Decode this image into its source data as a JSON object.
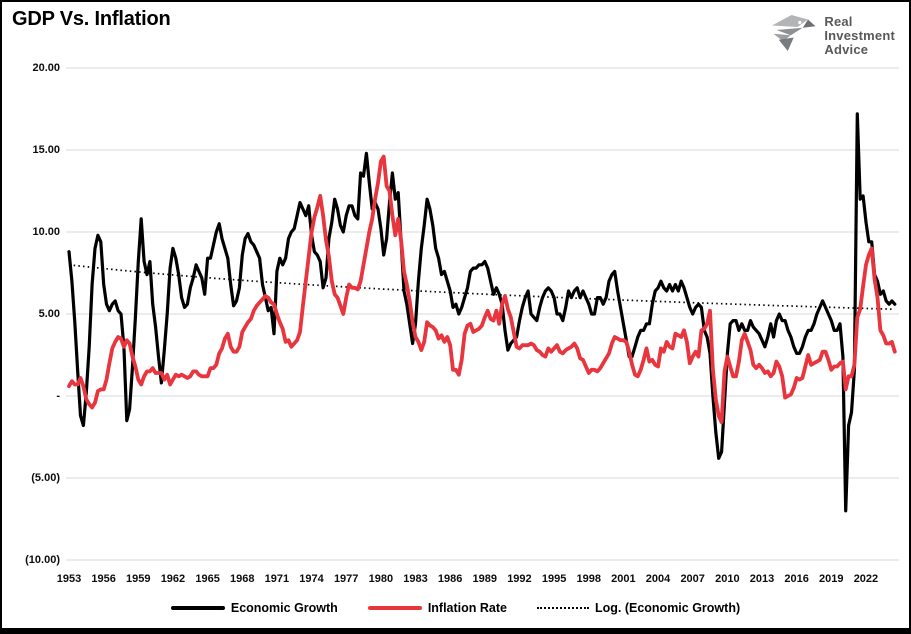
{
  "title": "GDP Vs. Inflation",
  "logo": {
    "line1": "Real",
    "line2": "Investment",
    "line3": "Advice"
  },
  "colors": {
    "economic_growth": "#000000",
    "inflation_rate": "#e8353e",
    "trend_line": "#000000",
    "gridline": "#d9d9d9",
    "axis_text": "#0d0d0d",
    "logo_gray": "#8e9093",
    "logo_text": "#58595b",
    "frame": "#000000"
  },
  "chart_data": {
    "type": "line",
    "title": "GDP Vs. Inflation",
    "frequency": "quarterly",
    "x_start_year": 1953,
    "x_end_year": 2024.5,
    "ylim": [
      -10,
      20
    ],
    "grid": "horizontal-only",
    "legend_position": "bottom-center",
    "y_ticks": [
      {
        "value": 20,
        "label": "20.00"
      },
      {
        "value": 15,
        "label": "15.00"
      },
      {
        "value": 10,
        "label": "10.00"
      },
      {
        "value": 5,
        "label": "5.00"
      },
      {
        "value": 0,
        "label": "-"
      },
      {
        "value": -5,
        "label": "(5.00)"
      },
      {
        "value": -10,
        "label": "(10.00)"
      }
    ],
    "x_ticks": [
      "1953",
      "1956",
      "1959",
      "1962",
      "1965",
      "1968",
      "1971",
      "1974",
      "1977",
      "1980",
      "1983",
      "1986",
      "1989",
      "1992",
      "1995",
      "1998",
      "2001",
      "2004",
      "2007",
      "2010",
      "2013",
      "2016",
      "2019",
      "2022"
    ],
    "legend": [
      {
        "label": "Economic Growth",
        "style": "solid",
        "color": "#000000"
      },
      {
        "label": "Inflation Rate",
        "style": "solid",
        "color": "#e8353e"
      },
      {
        "label": "Log. (Economic Growth)",
        "style": "dotted",
        "color": "#000000"
      }
    ],
    "series": [
      {
        "name": "Economic Growth",
        "color": "#000000",
        "values": [
          8.8,
          7.0,
          4.5,
          1.5,
          -1.2,
          -1.8,
          0.2,
          3.0,
          6.8,
          9.0,
          9.8,
          9.4,
          6.8,
          5.6,
          5.2,
          5.6,
          5.8,
          5.2,
          5.0,
          3.0,
          -1.5,
          -0.8,
          1.8,
          4.8,
          8.2,
          10.8,
          8.2,
          7.4,
          8.2,
          5.6,
          4.2,
          2.4,
          0.8,
          2.8,
          5.0,
          7.8,
          9.0,
          8.4,
          7.4,
          6.0,
          5.4,
          5.6,
          6.6,
          7.2,
          8.0,
          7.6,
          7.2,
          6.2,
          8.4,
          8.4,
          9.2,
          10.0,
          10.5,
          9.6,
          9.0,
          8.4,
          6.8,
          5.5,
          5.8,
          6.6,
          8.6,
          9.6,
          9.9,
          9.4,
          9.2,
          8.8,
          8.4,
          6.8,
          6.0,
          5.2,
          5.4,
          3.8,
          7.6,
          8.4,
          8.0,
          8.4,
          9.6,
          10.0,
          10.2,
          11.0,
          11.8,
          11.4,
          11.0,
          11.6,
          9.8,
          8.8,
          8.6,
          8.2,
          6.6,
          7.2,
          9.6,
          10.6,
          12.0,
          11.4,
          10.4,
          10.0,
          11.0,
          11.6,
          11.6,
          11.0,
          10.8,
          13.6,
          13.4,
          14.8,
          13.0,
          11.4,
          11.8,
          11.4,
          10.2,
          8.6,
          9.6,
          11.8,
          13.6,
          12.0,
          12.4,
          9.4,
          6.4,
          5.6,
          4.4,
          3.2,
          4.4,
          7.0,
          9.0,
          10.4,
          12.0,
          11.4,
          10.4,
          9.0,
          8.4,
          7.4,
          7.6,
          7.0,
          6.4,
          5.4,
          5.6,
          5.0,
          5.4,
          6.0,
          6.6,
          7.6,
          7.8,
          7.8,
          8.0,
          8.0,
          8.2,
          7.8,
          7.0,
          6.2,
          6.6,
          6.2,
          5.6,
          4.0,
          2.8,
          3.2,
          3.4,
          3.6,
          4.6,
          5.4,
          6.0,
          6.4,
          5.0,
          4.8,
          4.6,
          5.4,
          6.0,
          6.4,
          6.6,
          6.4,
          6.0,
          5.0,
          5.0,
          4.6,
          5.4,
          6.4,
          6.0,
          6.4,
          6.6,
          6.0,
          6.4,
          6.0,
          5.6,
          5.0,
          5.0,
          6.0,
          6.0,
          5.6,
          6.0,
          7.0,
          7.4,
          7.6,
          6.4,
          5.4,
          4.4,
          3.4,
          2.4,
          2.4,
          3.0,
          3.6,
          4.0,
          4.0,
          4.4,
          4.4,
          5.6,
          6.4,
          6.6,
          7.0,
          6.6,
          6.4,
          6.8,
          6.4,
          6.8,
          6.4,
          7.0,
          6.6,
          6.0,
          5.4,
          5.0,
          5.4,
          5.6,
          5.4,
          4.0,
          3.6,
          2.6,
          0.0,
          -2.2,
          -3.8,
          -3.4,
          -0.4,
          2.6,
          4.4,
          4.6,
          4.6,
          4.0,
          4.4,
          4.0,
          4.0,
          4.6,
          4.2,
          4.0,
          3.8,
          3.4,
          3.0,
          3.6,
          4.4,
          3.6,
          4.6,
          5.0,
          4.6,
          4.6,
          4.0,
          3.6,
          3.0,
          2.6,
          2.6,
          3.0,
          3.6,
          4.0,
          4.0,
          4.4,
          5.0,
          5.4,
          5.8,
          5.4,
          5.0,
          4.6,
          4.0,
          4.0,
          4.4,
          2.4,
          -7.0,
          -1.8,
          -1.0,
          1.6,
          17.2,
          12.0,
          12.2,
          10.6,
          9.4,
          9.4,
          7.4,
          7.0,
          6.2,
          6.4,
          5.8,
          5.6,
          5.8,
          5.6
        ]
      },
      {
        "name": "Inflation Rate",
        "color": "#e8353e",
        "values": [
          0.6,
          0.9,
          0.7,
          0.7,
          1.1,
          0.6,
          -0.2,
          -0.5,
          -0.7,
          -0.4,
          0.3,
          0.4,
          0.4,
          1.0,
          2.0,
          2.9,
          3.3,
          3.6,
          3.5,
          3.0,
          3.4,
          3.2,
          2.4,
          1.8,
          1.0,
          0.7,
          1.2,
          1.5,
          1.5,
          1.7,
          1.4,
          1.4,
          1.4,
          1.0,
          1.3,
          0.7,
          1.0,
          1.3,
          1.2,
          1.3,
          1.2,
          1.1,
          1.2,
          1.5,
          1.5,
          1.3,
          1.2,
          1.2,
          1.2,
          1.7,
          1.7,
          1.9,
          2.6,
          2.9,
          3.5,
          3.8,
          3.0,
          2.7,
          2.7,
          3.0,
          3.9,
          4.2,
          4.5,
          4.7,
          5.2,
          5.5,
          5.7,
          5.9,
          6.1,
          6.0,
          5.7,
          5.6,
          5.0,
          4.5,
          4.1,
          3.3,
          3.4,
          3.0,
          3.2,
          3.4,
          3.9,
          5.5,
          7.0,
          8.5,
          10.0,
          10.9,
          11.5,
          12.2,
          11.0,
          9.5,
          8.5,
          7.0,
          6.2,
          6.0,
          5.5,
          5.0,
          6.0,
          6.8,
          6.6,
          6.6,
          6.5,
          7.0,
          8.0,
          9.0,
          10.0,
          10.8,
          12.0,
          13.0,
          14.3,
          14.6,
          12.8,
          12.5,
          11.0,
          9.8,
          10.8,
          9.5,
          7.6,
          6.8,
          5.8,
          4.5,
          3.6,
          3.3,
          2.8,
          3.3,
          4.5,
          4.3,
          4.2,
          4.0,
          3.5,
          3.7,
          3.3,
          3.6,
          3.1,
          1.6,
          1.6,
          1.3,
          2.2,
          3.8,
          4.3,
          4.4,
          3.9,
          4.0,
          4.1,
          4.3,
          4.8,
          5.2,
          4.7,
          4.6,
          5.2,
          4.4,
          5.6,
          6.1,
          5.3,
          4.8,
          3.9,
          3.0,
          2.9,
          3.1,
          3.1,
          3.1,
          3.2,
          3.1,
          2.8,
          2.7,
          2.5,
          2.4,
          2.9,
          2.7,
          2.9,
          3.1,
          2.7,
          2.6,
          2.8,
          2.9,
          3.0,
          3.2,
          2.9,
          2.3,
          2.2,
          1.8,
          1.4,
          1.6,
          1.6,
          1.5,
          1.7,
          2.0,
          2.3,
          2.6,
          3.2,
          3.6,
          3.5,
          3.4,
          3.4,
          3.3,
          2.7,
          1.9,
          1.3,
          1.2,
          1.6,
          2.2,
          2.9,
          2.1,
          2.2,
          1.9,
          1.8,
          2.9,
          2.7,
          3.3,
          3.0,
          2.9,
          3.8,
          3.7,
          3.6,
          4.0,
          3.3,
          2.0,
          2.4,
          2.7,
          2.4,
          4.0,
          4.1,
          4.4,
          5.2,
          1.6,
          -0.2,
          -1.2,
          -1.6,
          1.5,
          2.4,
          1.8,
          1.2,
          1.2,
          2.1,
          3.4,
          3.8,
          3.3,
          2.8,
          1.9,
          1.7,
          1.9,
          1.7,
          1.4,
          1.5,
          1.2,
          1.4,
          2.1,
          1.8,
          1.2,
          -0.1,
          0.0,
          0.1,
          0.5,
          1.1,
          1.0,
          1.1,
          1.8,
          2.5,
          1.9,
          2.0,
          2.1,
          2.2,
          2.7,
          2.7,
          2.2,
          1.6,
          1.8,
          1.8,
          2.0,
          2.1,
          0.4,
          1.2,
          1.2,
          1.9,
          4.8,
          5.3,
          6.7,
          8.0,
          8.6,
          9.0,
          7.1,
          6.0,
          4.0,
          3.7,
          3.2,
          3.2,
          3.3,
          2.7
        ]
      }
    ],
    "trend": {
      "name": "Log. (Economic Growth)",
      "shape": "logarithmic",
      "start_value": 8.0,
      "end_value": 5.3,
      "fit": {
        "A": 14.46,
        "B": 2.007,
        "C": 25
      }
    }
  }
}
